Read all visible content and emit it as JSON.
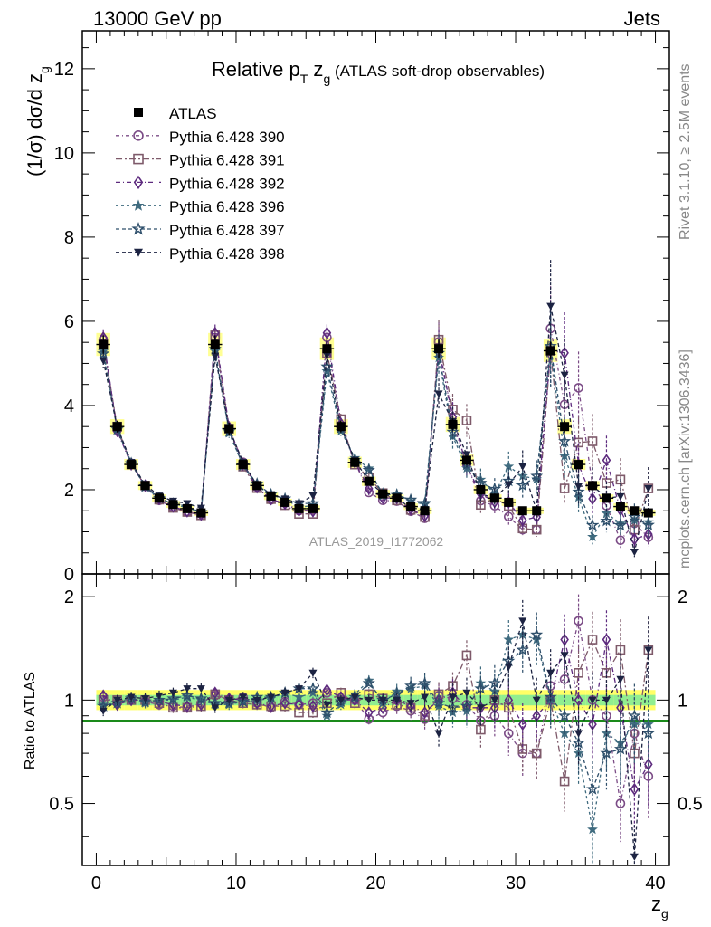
{
  "header": {
    "left": "13000 GeV pp",
    "right": "Jets"
  },
  "side_labels": {
    "rivet": "Rivet 3.1.10, ≥ 2.5M events",
    "mcplots": "mcplots.cern.ch [arXiv:1306.3436]"
  },
  "chart_data": {
    "type": "scatter",
    "title": {
      "main": "Relative p",
      "sub_t": "T",
      "mid": " z",
      "sub_g": "g",
      "rest": " (ATLAS soft-drop observables)"
    },
    "watermark": "ATLAS_2019_I1772062",
    "ylabel": "(1/σ) dσ/d z",
    "ylabel_sub": "g",
    "xlabel": "z",
    "xlabel_sub": "g",
    "ratio_ylabel": "Ratio to ATLAS",
    "xlim": [
      -1,
      41
    ],
    "ylim": [
      0,
      12.9
    ],
    "ratio_ylim": [
      0.33,
      2.33
    ],
    "ratio_log": true,
    "x_ticks": [
      "0",
      "10",
      "20",
      "30",
      "40"
    ],
    "y_ticks": [
      "0",
      "2",
      "4",
      "6",
      "8",
      "10",
      "12"
    ],
    "ratio_ticks": [
      "0.5",
      "1",
      "2"
    ],
    "legend_placement": "top-left",
    "x": [
      0.5,
      1.5,
      2.5,
      3.5,
      4.5,
      5.5,
      6.5,
      7.5,
      8.5,
      9.5,
      10.5,
      11.5,
      12.5,
      13.5,
      14.5,
      15.5,
      16.5,
      17.5,
      18.5,
      19.5,
      20.5,
      21.5,
      22.5,
      23.5,
      24.5,
      25.5,
      26.5,
      27.5,
      28.5,
      29.5,
      30.5,
      31.5,
      32.5,
      33.5,
      34.5,
      35.5,
      36.5,
      37.5,
      38.5,
      39.5
    ],
    "data": {
      "name": "ATLAS",
      "values": [
        5.45,
        3.5,
        2.6,
        2.1,
        1.8,
        1.65,
        1.55,
        1.45,
        5.45,
        3.45,
        2.6,
        2.1,
        1.85,
        1.7,
        1.55,
        1.55,
        5.35,
        3.5,
        2.65,
        2.2,
        1.9,
        1.8,
        1.6,
        1.5,
        5.35,
        3.55,
        2.7,
        2.0,
        1.8,
        1.7,
        1.5,
        1.5,
        5.3,
        3.5,
        2.6,
        2.1,
        1.8,
        1.6,
        1.5,
        1.45
      ]
    },
    "series": [
      {
        "name": "Pythia 6.428 390",
        "color": "#7b4b86",
        "dash": "4,3,1,3",
        "marker": "circle-open",
        "ratio": [
          1.02,
          0.98,
          1.01,
          0.99,
          0.97,
          0.96,
          0.95,
          0.98,
          1.03,
          1.0,
          1.02,
          0.98,
          0.95,
          0.99,
          0.97,
          0.98,
          1.05,
          1.0,
          1.0,
          0.88,
          0.92,
          0.96,
          0.93,
          0.88,
          1.03,
          1.01,
          0.97,
          0.87,
          0.9,
          0.8,
          0.7,
          0.7,
          1.1,
          1.15,
          1.7,
          1.0,
          0.9,
          0.5,
          0.8,
          0.6
        ]
      },
      {
        "name": "Pythia 6.428 391",
        "color": "#7e5a6a",
        "dash": "7,3,2,3",
        "marker": "square-open",
        "ratio": [
          1.0,
          1.0,
          1.0,
          1.0,
          0.98,
          0.95,
          0.95,
          0.96,
          1.04,
          1.0,
          0.98,
          0.97,
          0.96,
          0.96,
          0.92,
          0.92,
          0.98,
          1.05,
          0.98,
          1.04,
          1.01,
          0.97,
          0.95,
          0.9,
          1.04,
          1.1,
          1.35,
          0.82,
          1.0,
          0.95,
          0.72,
          0.7,
          1.0,
          0.58,
          1.2,
          1.5,
          1.2,
          1.4,
          0.7,
          1.4
        ]
      },
      {
        "name": "Pythia 6.428 392",
        "color": "#5d2a7e",
        "dash": "5,3,1,3",
        "marker": "diamond-open",
        "ratio": [
          1.03,
          0.97,
          1.0,
          1.0,
          0.99,
          0.97,
          0.96,
          0.97,
          1.05,
          1.01,
          1.0,
          0.98,
          0.96,
          0.98,
          0.97,
          0.96,
          1.07,
          1.02,
          1.0,
          0.92,
          0.95,
          1.0,
          0.96,
          0.92,
          1.0,
          1.05,
          0.95,
          0.95,
          0.95,
          1.0,
          0.85,
          0.9,
          1.0,
          1.5,
          1.0,
          0.85,
          1.5,
          0.95,
          0.55,
          0.65
        ]
      },
      {
        "name": "Pythia 6.428 396",
        "color": "#3f6b7f",
        "dash": "3,3",
        "marker": "star-filled",
        "ratio": [
          0.97,
          0.98,
          1.02,
          0.98,
          1.0,
          1.0,
          1.02,
          1.0,
          0.97,
          0.97,
          0.99,
          1.0,
          1.01,
          1.05,
          1.02,
          1.05,
          0.9,
          0.97,
          1.04,
          1.14,
          0.98,
          1.06,
          1.08,
          1.1,
          0.96,
          0.92,
          0.93,
          1.12,
          1.06,
          1.5,
          1.55,
          1.5,
          1.0,
          0.8,
          0.7,
          0.42,
          0.8,
          0.75,
          0.85,
          0.85
        ]
      },
      {
        "name": "Pythia 6.428 397",
        "color": "#2e4f6b",
        "dash": "4,3",
        "marker": "star-open",
        "ratio": [
          0.96,
          0.98,
          1.01,
          0.99,
          1.0,
          1.01,
          1.03,
          1.01,
          0.98,
          0.98,
          0.99,
          1.02,
          1.02,
          1.05,
          1.08,
          1.08,
          0.92,
          0.99,
          1.02,
          1.12,
          1.0,
          1.04,
          1.1,
          1.12,
          0.98,
          0.95,
          0.96,
          1.08,
          1.12,
          1.3,
          1.4,
          1.55,
          1.02,
          0.9,
          0.75,
          0.55,
          0.7,
          0.72,
          0.9,
          0.8
        ]
      },
      {
        "name": "Pythia 6.428 398",
        "color": "#1c2342",
        "dash": "4,3",
        "marker": "triangle-down",
        "ratio": [
          0.93,
          1.0,
          1.02,
          1.01,
          1.03,
          1.05,
          1.08,
          1.08,
          0.95,
          1.0,
          1.02,
          1.0,
          1.02,
          1.05,
          1.08,
          1.2,
          0.97,
          1.0,
          1.02,
          1.0,
          1.0,
          1.0,
          0.98,
          1.02,
          0.8,
          1.02,
          1.05,
          0.95,
          1.0,
          1.25,
          1.7,
          1.0,
          1.2,
          1.35,
          0.8,
          1.0,
          1.0,
          1.15,
          0.35,
          1.4
        ]
      }
    ]
  }
}
